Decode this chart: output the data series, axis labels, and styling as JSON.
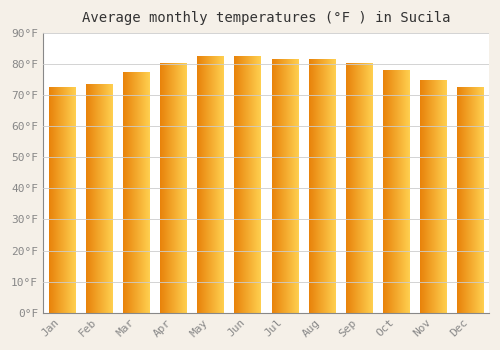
{
  "title": "Average monthly temperatures (°F ) in Sucila",
  "months": [
    "Jan",
    "Feb",
    "Mar",
    "Apr",
    "May",
    "Jun",
    "Jul",
    "Aug",
    "Sep",
    "Oct",
    "Nov",
    "Dec"
  ],
  "values": [
    72.5,
    73.5,
    77.5,
    80.5,
    82.5,
    82.5,
    81.5,
    81.5,
    80.5,
    78.0,
    75.0,
    72.5
  ],
  "bar_color_left": "#E8820A",
  "bar_color_mid": "#F5A800",
  "bar_color_right": "#FFD050",
  "background_color": "#F5F0E8",
  "plot_bg_color": "#FFFFFF",
  "grid_color": "#CCCCCC",
  "ylim": [
    0,
    90
  ],
  "yticks": [
    0,
    10,
    20,
    30,
    40,
    50,
    60,
    70,
    80,
    90
  ],
  "ytick_labels": [
    "0°F",
    "10°F",
    "20°F",
    "30°F",
    "40°F",
    "50°F",
    "60°F",
    "70°F",
    "80°F",
    "90°F"
  ],
  "title_fontsize": 10,
  "tick_fontsize": 8,
  "font_family": "monospace"
}
